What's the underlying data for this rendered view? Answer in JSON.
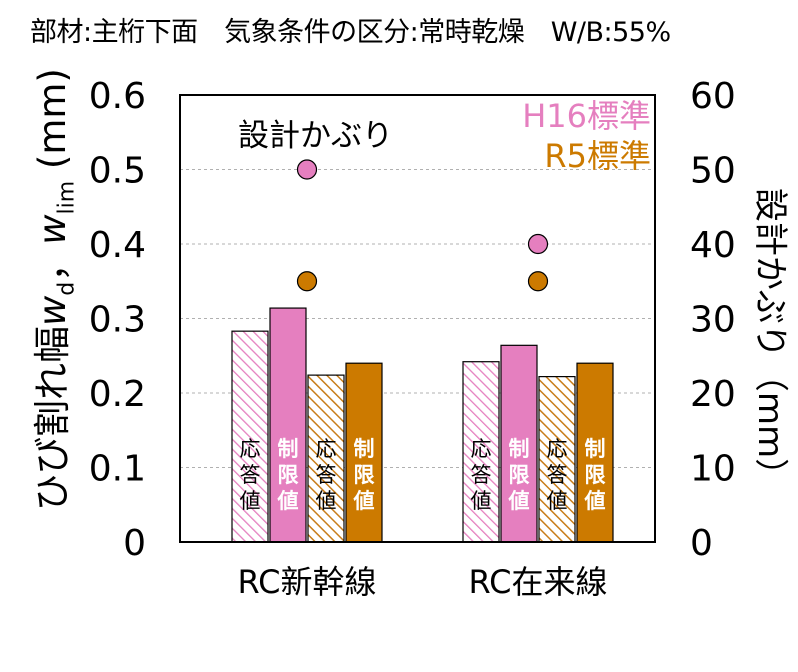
{
  "page_title": "部材:主桁下面　気象条件の区分:常時乾燥　W/B:55%",
  "colors": {
    "h16": "#e57fbf",
    "r5": "#cc7a00",
    "h16_hatch": "#e57fbf",
    "r5_hatch": "#c87d1a",
    "grid": "#b0b0b0",
    "axis": "#000000"
  },
  "chart_data": {
    "type": "bar",
    "categories": [
      "RC新幹線",
      "RC在来線"
    ],
    "y_left": {
      "label_parts": [
        "ひび割れ幅",
        "w",
        "d",
        "，",
        "w",
        "lim",
        " (mm)"
      ],
      "ylim": [
        0,
        0.6
      ],
      "ticks": [
        "0",
        "0.1",
        "0.2",
        "0.3",
        "0.4",
        "0.5",
        "0.6"
      ],
      "tick_values": [
        0,
        0.1,
        0.2,
        0.3,
        0.4,
        0.5,
        0.6
      ]
    },
    "y_right": {
      "label": "設計かぶり（mm）",
      "ylim": [
        0,
        60
      ],
      "ticks": [
        "0",
        "10",
        "20",
        "30",
        "40",
        "50",
        "60"
      ],
      "tick_values": [
        0,
        10,
        20,
        30,
        40,
        50,
        60
      ]
    },
    "grid": true,
    "legend": {
      "position": "top-right",
      "entries": [
        {
          "name": "H16標準",
          "color_key": "h16"
        },
        {
          "name": "R5標準",
          "color_key": "r5"
        }
      ]
    },
    "annotation": "設計かぶり",
    "series": [
      {
        "key": "h16_resp",
        "standard": "H16標準",
        "bar_label": "応答値",
        "style": "hatch",
        "color_key": "h16_hatch",
        "values": [
          0.283,
          0.242
        ]
      },
      {
        "key": "h16_limit",
        "standard": "H16標準",
        "bar_label": "制限値",
        "style": "solid",
        "color_key": "h16",
        "values": [
          0.314,
          0.264
        ]
      },
      {
        "key": "r5_resp",
        "standard": "R5標準",
        "bar_label": "応答値",
        "style": "hatch",
        "color_key": "r5_hatch",
        "values": [
          0.224,
          0.222
        ]
      },
      {
        "key": "r5_limit",
        "standard": "R5標準",
        "bar_label": "制限値",
        "style": "solid",
        "color_key": "r5",
        "values": [
          0.24,
          0.24
        ]
      }
    ],
    "cover_points": [
      {
        "standard": "H16標準",
        "color_key": "h16",
        "values": [
          50,
          40
        ]
      },
      {
        "standard": "R5標準",
        "color_key": "r5",
        "values": [
          35,
          35
        ]
      }
    ]
  }
}
